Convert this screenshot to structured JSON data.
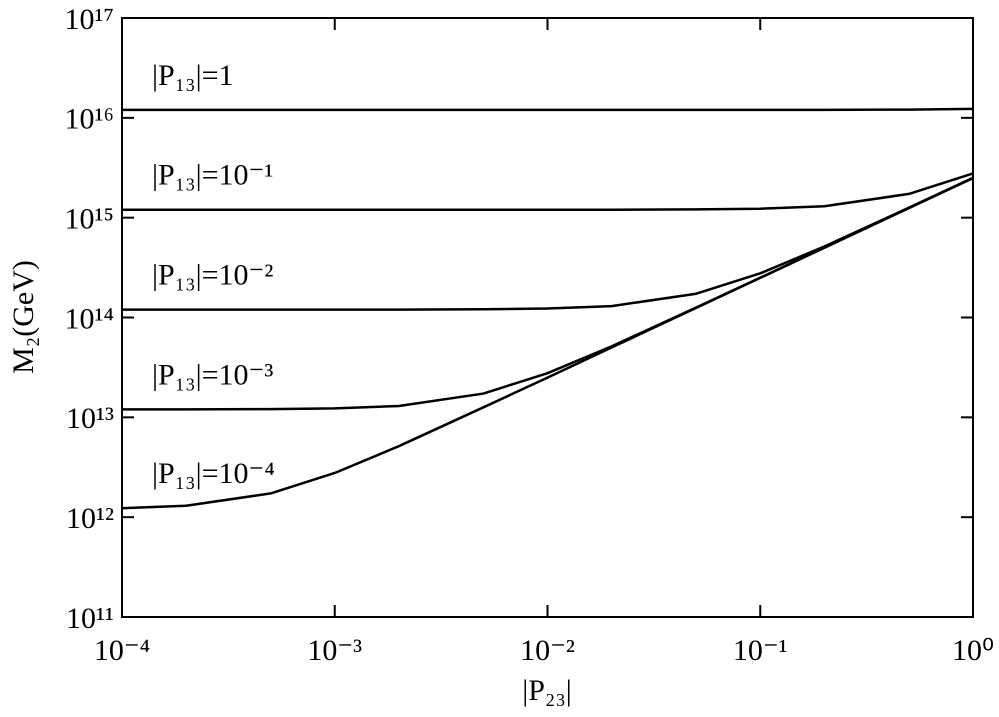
{
  "chart_data": {
    "type": "line",
    "x_label": "|P₂₃|",
    "y_label": "M₂(GeV)",
    "log_x": true,
    "log_y": true,
    "grid": false,
    "color": "#000000",
    "x": [
      0.0001,
      0.0002,
      0.0005,
      0.001,
      0.002,
      0.005,
      0.01,
      0.02,
      0.05,
      0.1,
      0.2,
      0.5,
      1
    ],
    "series": [
      {
        "name": "|P₁₃|=1",
        "color": "#000000",
        "values": [
          1.2e+16,
          1.2e+16,
          1.2e+16,
          1.2e+16,
          1.2e+16,
          1.2e+16,
          1.2e+16,
          1.2e+16,
          1.2e+16,
          1.2e+16,
          1.2e+16,
          1.21e+16,
          1.23e+16
        ]
      },
      {
        "name": "|P₁₃|=10⁻¹",
        "color": "#000000",
        "values": [
          1200000000000000.0,
          1200000000000000.0,
          1200000000000000.0,
          1200000000000000.0,
          1200000000000000.0,
          1200000000000000.0,
          1200000000000000.0,
          1200000000000000.0,
          1210000000000000.0,
          1230000000000000.0,
          1300000000000000.0,
          1730000000000000.0,
          2770000000000000.0
        ]
      },
      {
        "name": "|P₁₃|=10⁻²",
        "color": "#000000",
        "values": [
          120000000000000.0,
          120000000000000.0,
          120000000000000.0,
          120000000000000.0,
          120000000000000.0,
          121000000000000.0,
          123000000000000.0,
          130000000000000.0,
          173000000000000.0,
          277000000000000.0,
          514000000000000.0,
          1260000000000000.0,
          2500000000000000.0
        ]
      },
      {
        "name": "|P₁₃|=10⁻³",
        "color": "#000000",
        "values": [
          12000000000000.0,
          12000000000000.0,
          12100000000000.0,
          12300000000000.0,
          13000000000000.0,
          17300000000000.0,
          27700000000000.0,
          51400000000000.0,
          126000000000000.0,
          250000000000000.0,
          500000000000000.0,
          1250000000000000.0,
          2500000000000000.0
        ]
      },
      {
        "name": "|P₁₃|=10⁻⁴",
        "color": "#000000",
        "values": [
          1230000000000.0,
          1300000000000.0,
          1730000000000.0,
          2770000000000.0,
          5140000000000.0,
          12600000000000.0,
          25000000000000.0,
          50000000000000.0,
          125000000000000.0,
          250000000000000.0,
          500000000000000.0,
          1250000000000000.0,
          2500000000000000.0
        ]
      }
    ],
    "xlim": [
      0.0001,
      1
    ],
    "xticks": [
      {
        "value": 0.0001,
        "label": "10⁻⁴"
      },
      {
        "value": 0.001,
        "label": "10⁻³"
      },
      {
        "value": 0.01,
        "label": "10⁻²"
      },
      {
        "value": 0.1,
        "label": "10⁻¹"
      },
      {
        "value": 1,
        "label": "10⁰"
      }
    ],
    "ylim": [
      100000000000.0,
      1e+17
    ],
    "yticks": [
      {
        "value": 100000000000.0,
        "label": "10¹¹"
      },
      {
        "value": 1000000000000.0,
        "label": "10¹²"
      },
      {
        "value": 10000000000000.0,
        "label": "10¹³"
      },
      {
        "value": 100000000000000.0,
        "label": "10¹⁴"
      },
      {
        "value": 1000000000000000.0,
        "label": "10¹⁵"
      },
      {
        "value": 1e+16,
        "label": "10¹⁶"
      },
      {
        "value": 1e+17,
        "label": "10¹⁷"
      }
    ]
  }
}
